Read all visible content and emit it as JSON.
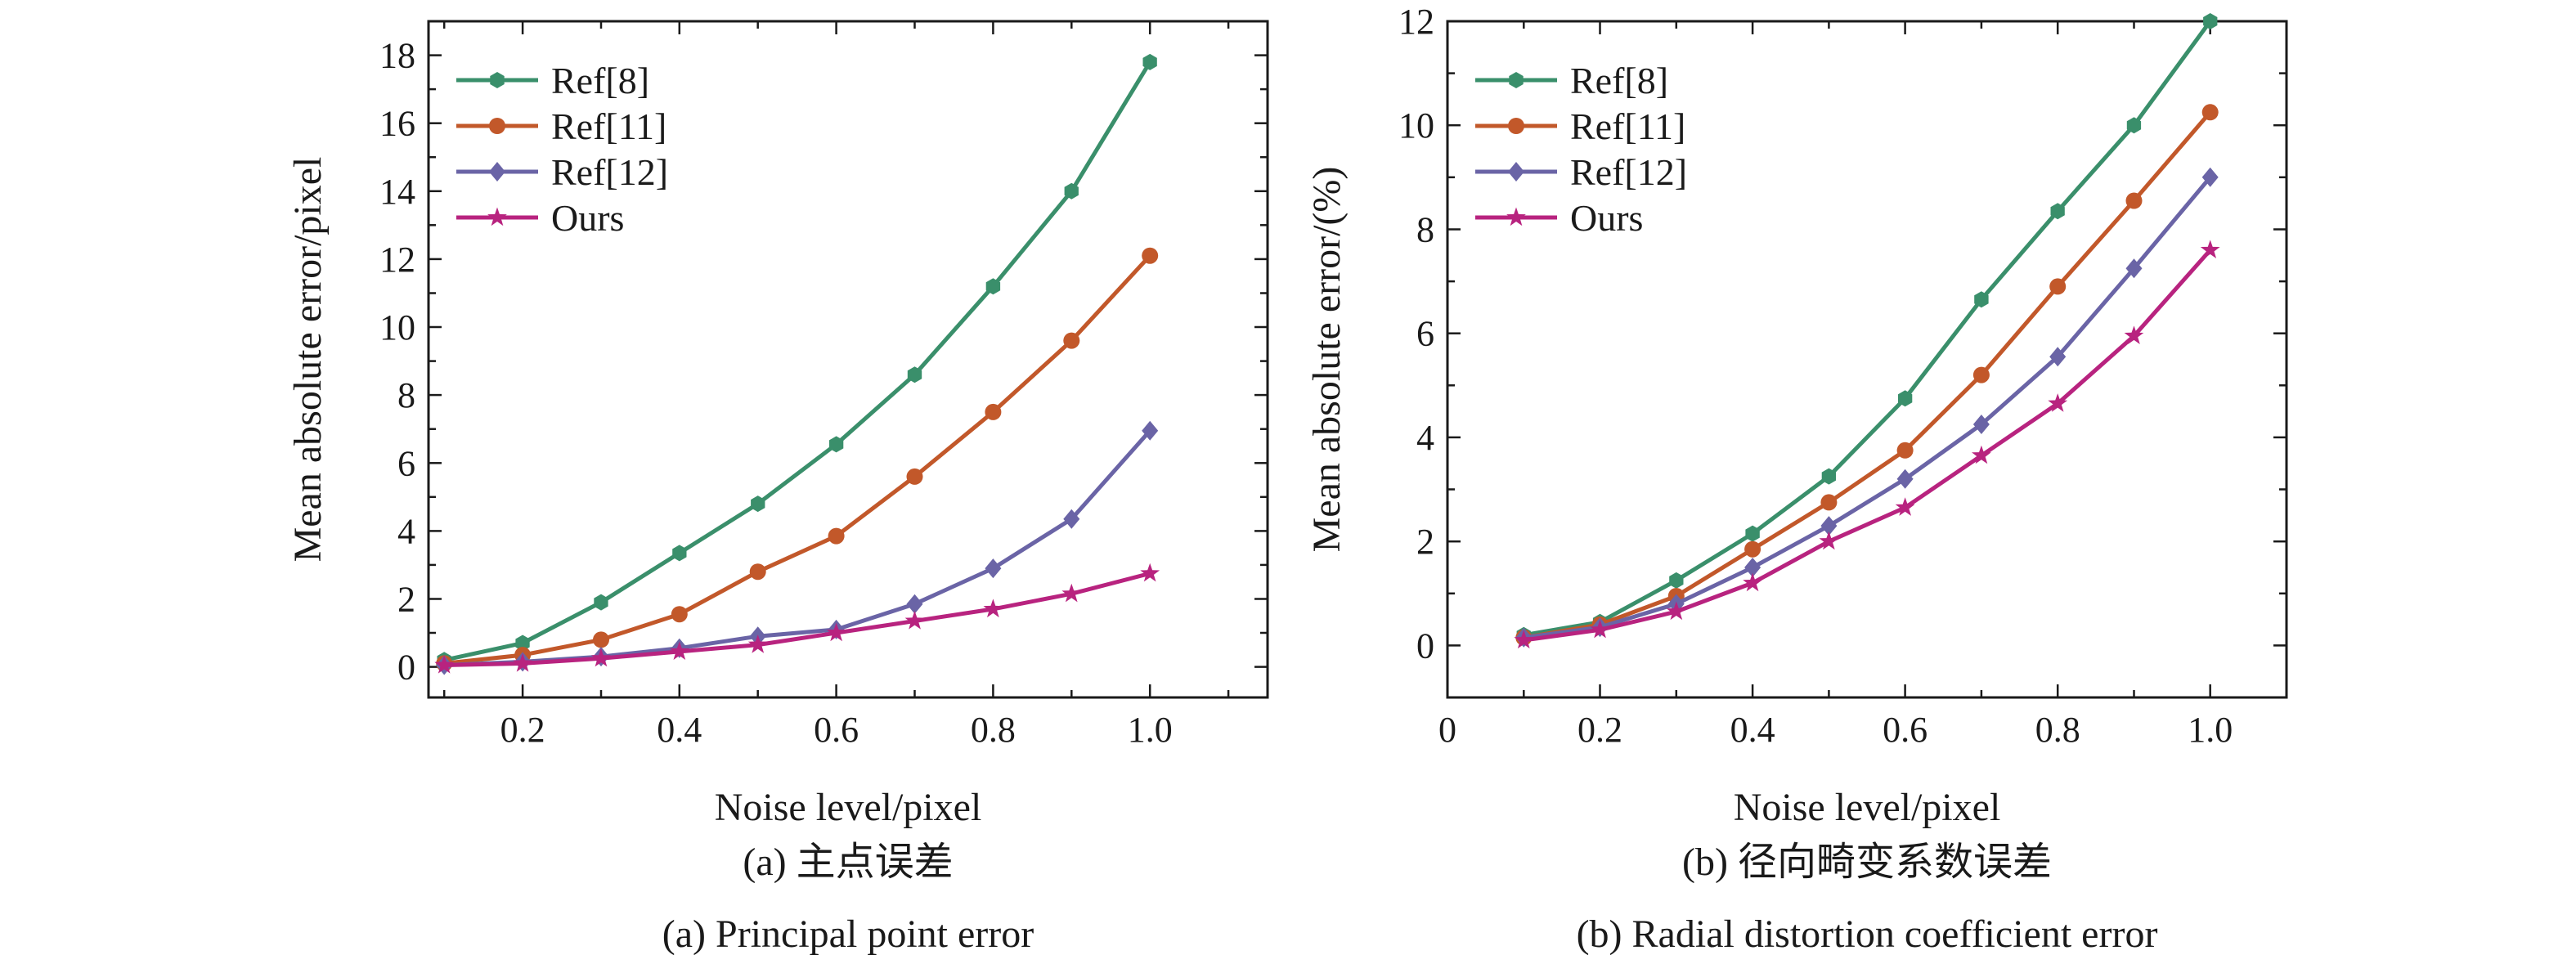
{
  "colors": {
    "ref8": "#3a8f6b",
    "ref11": "#c2582a",
    "ref12": "#6a64a6",
    "ours": "#b8237f",
    "axis": "#1a1a1a"
  },
  "chart_data": [
    {
      "type": "line",
      "ylabel": "Mean absolute error/pixel",
      "xlabel": "Noise level/pixel",
      "caption_cn": "(a) 主点误差",
      "caption_en": "(a) Principal point error",
      "xlim": [
        0.08,
        1.15
      ],
      "ylim": [
        -0.9,
        19.0
      ],
      "xticks": [
        0.2,
        0.4,
        0.6,
        0.8,
        1.0
      ],
      "xtick_labels": [
        "0.2",
        "0.4",
        "0.6",
        "0.8",
        "1.0"
      ],
      "yticks": [
        0,
        2,
        4,
        6,
        8,
        10,
        12,
        14,
        16,
        18
      ],
      "ytick_labels": [
        "0",
        "2",
        "4",
        "6",
        "8",
        "10",
        "12",
        "14",
        "16",
        "18"
      ],
      "legend_position": "top-left",
      "grid": false,
      "x": [
        0.1,
        0.2,
        0.3,
        0.4,
        0.5,
        0.6,
        0.7,
        0.8,
        0.9,
        1.0
      ],
      "series": [
        {
          "name": "Ref[8]",
          "color": "#3a8f6b",
          "marker": "hexagon",
          "values": [
            0.2,
            0.7,
            1.9,
            3.35,
            4.8,
            6.55,
            8.6,
            11.2,
            14.0,
            17.8
          ]
        },
        {
          "name": "Ref[11]",
          "color": "#c2582a",
          "marker": "circle",
          "values": [
            0.1,
            0.35,
            0.8,
            1.55,
            2.8,
            3.85,
            5.6,
            7.5,
            9.6,
            12.1
          ]
        },
        {
          "name": "Ref[12]",
          "color": "#6a64a6",
          "marker": "diamond",
          "values": [
            0.05,
            0.15,
            0.3,
            0.55,
            0.9,
            1.1,
            1.85,
            2.9,
            4.35,
            6.95
          ]
        },
        {
          "name": "Ours",
          "color": "#b8237f",
          "marker": "star",
          "values": [
            0.05,
            0.1,
            0.25,
            0.45,
            0.65,
            1.0,
            1.35,
            1.7,
            2.15,
            2.75
          ]
        }
      ]
    },
    {
      "type": "line",
      "ylabel": "Mean absolute error/(%)",
      "xlabel": "Noise level/pixel",
      "caption_cn": "(b) 径向畸变系数误差",
      "caption_en": "(b) Radial distortion coefficient error",
      "xlim": [
        0,
        1.1
      ],
      "ylim": [
        -1,
        12
      ],
      "xticks": [
        0,
        0.2,
        0.4,
        0.6,
        0.8,
        1.0
      ],
      "xtick_labels": [
        "0",
        "0.2",
        "0.4",
        "0.6",
        "0.8",
        "1.0"
      ],
      "yticks": [
        0,
        2,
        4,
        6,
        8,
        10,
        12
      ],
      "ytick_labels": [
        "0",
        "2",
        "4",
        "6",
        "8",
        "10",
        "12"
      ],
      "legend_position": "top-left",
      "grid": false,
      "x": [
        0.1,
        0.2,
        0.3,
        0.4,
        0.5,
        0.6,
        0.7,
        0.8,
        0.9,
        1.0
      ],
      "series": [
        {
          "name": "Ref[8]",
          "color": "#3a8f6b",
          "marker": "hexagon",
          "values": [
            0.2,
            0.45,
            1.25,
            2.15,
            3.25,
            4.75,
            6.65,
            8.35,
            10.0,
            12.0
          ]
        },
        {
          "name": "Ref[11]",
          "color": "#c2582a",
          "marker": "circle",
          "values": [
            0.15,
            0.4,
            0.95,
            1.85,
            2.75,
            3.75,
            5.2,
            6.9,
            8.55,
            10.25
          ]
        },
        {
          "name": "Ref[12]",
          "color": "#6a64a6",
          "marker": "diamond",
          "values": [
            0.15,
            0.35,
            0.8,
            1.5,
            2.3,
            3.2,
            4.25,
            5.55,
            7.25,
            9.0
          ]
        },
        {
          "name": "Ours",
          "color": "#b8237f",
          "marker": "star",
          "values": [
            0.1,
            0.3,
            0.65,
            1.2,
            2.0,
            2.65,
            3.65,
            4.65,
            5.95,
            7.6
          ]
        }
      ]
    }
  ]
}
